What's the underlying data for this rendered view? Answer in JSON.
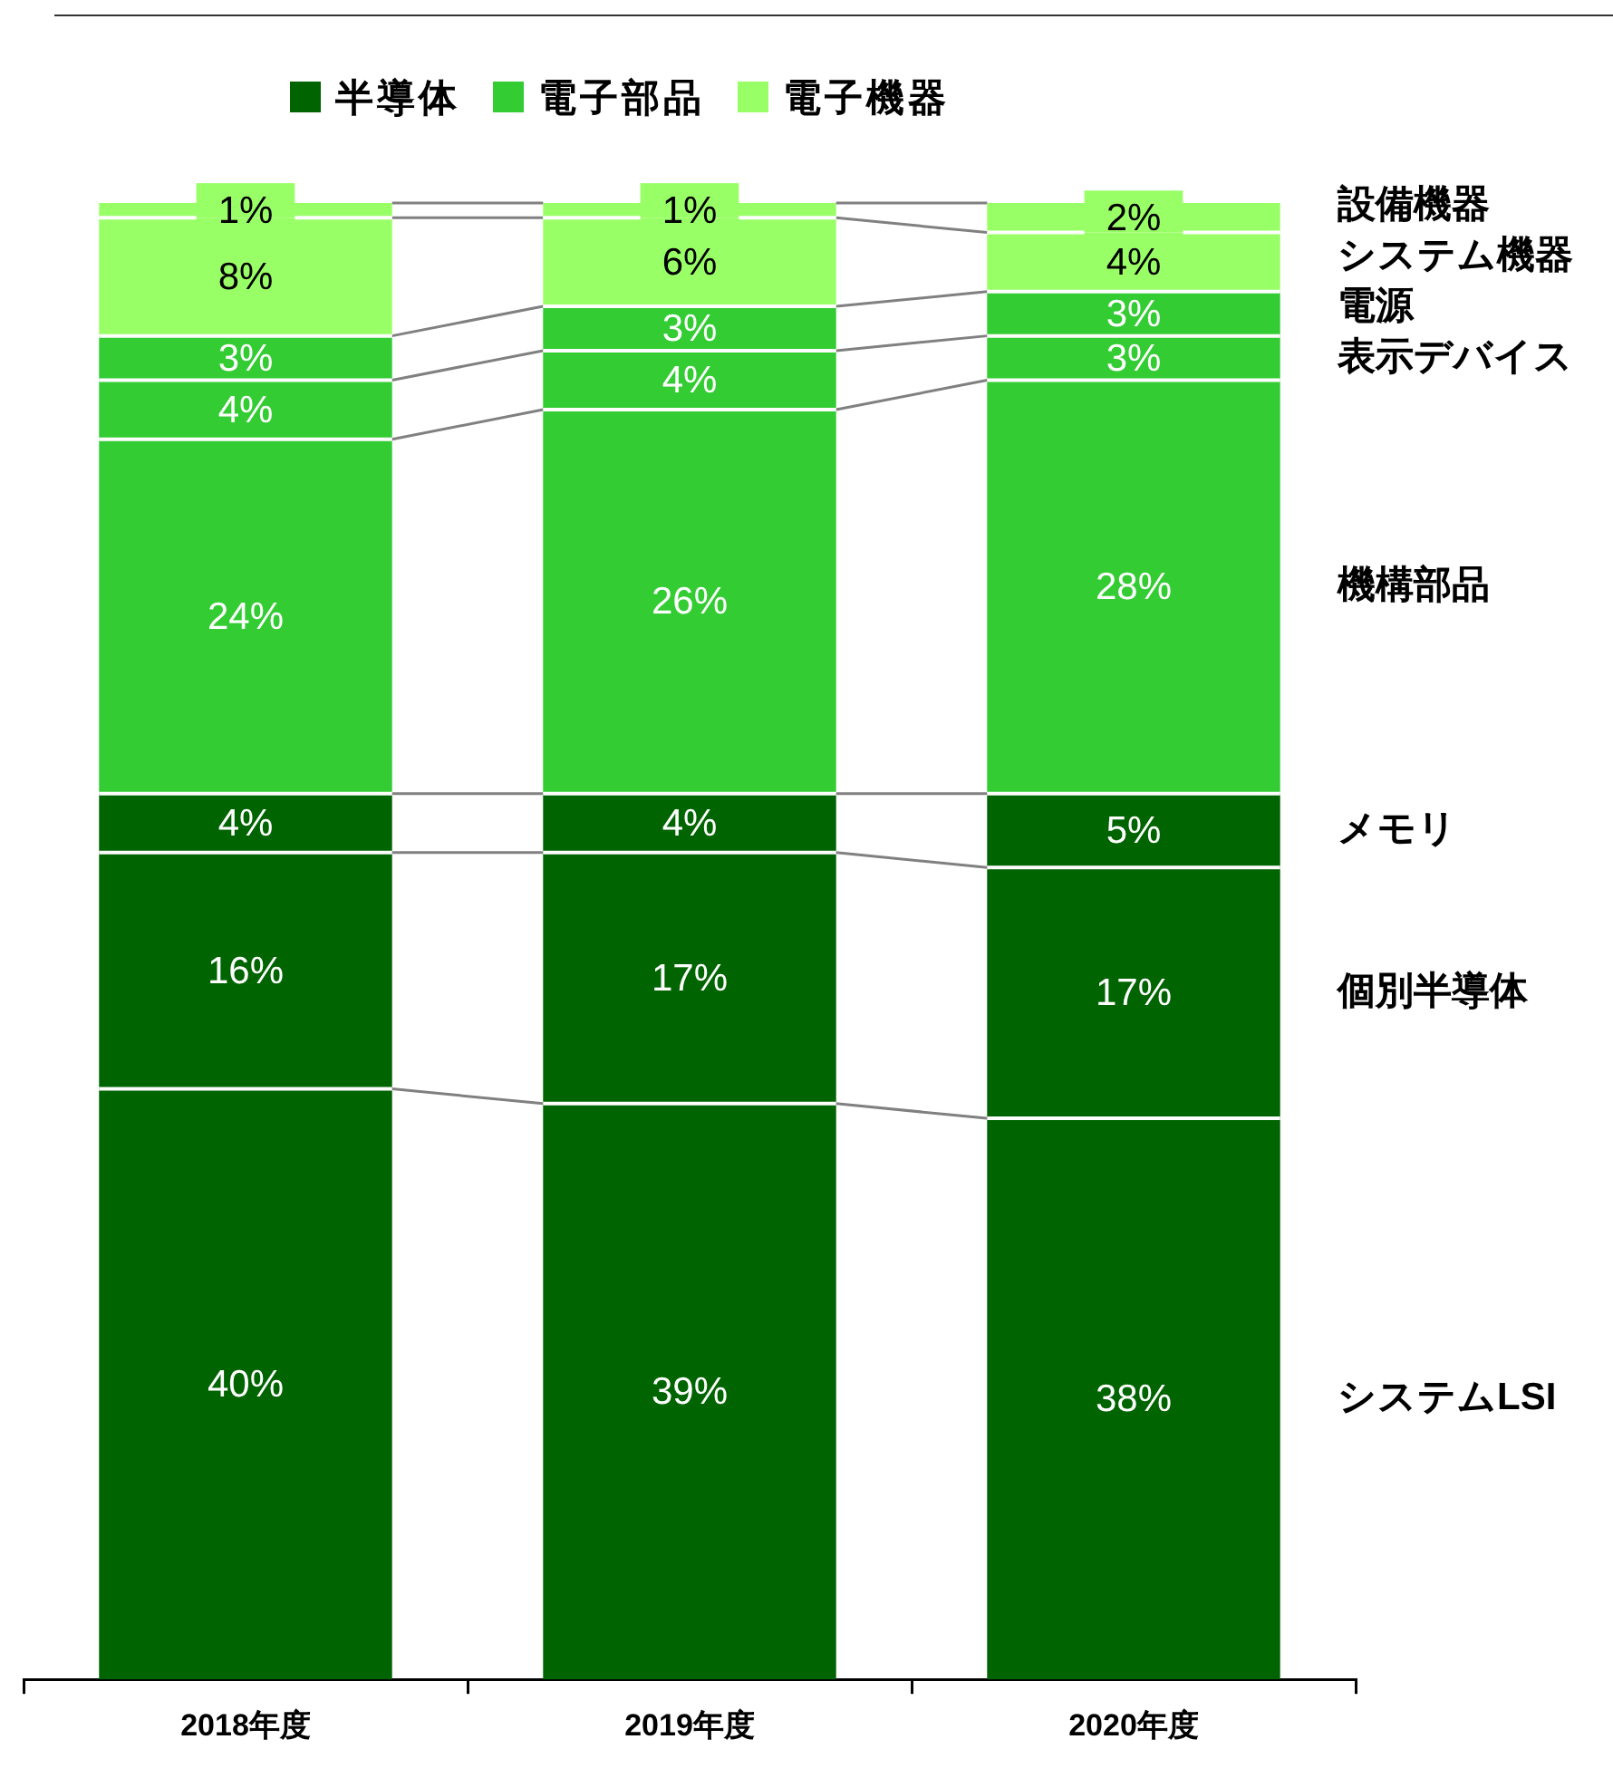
{
  "chart_data": {
    "type": "bar",
    "stacked": true,
    "legend": false,
    "grid": false,
    "categories": [
      "2018年度",
      "2019年度",
      "2020年度"
    ],
    "annotations": [
      "半導体",
      "電子部品",
      "電子機器"
    ],
    "series": [
      {
        "name": "システムLSI",
        "color": "#006400",
        "values": [
          40,
          39,
          38
        ],
        "value_labels": [
          "40%",
          "39%",
          "38%"
        ]
      },
      {
        "name": "個別半導体",
        "color": "#006400",
        "values": [
          16,
          17,
          17
        ],
        "value_labels": [
          "16%",
          "17%",
          "17%"
        ]
      },
      {
        "name": "メモリ",
        "color": "#006400",
        "values": [
          4,
          4,
          5
        ],
        "value_labels": [
          "4%",
          "4%",
          "5%"
        ]
      },
      {
        "name": "機構部品",
        "color": "#33cc33",
        "values": [
          24,
          26,
          28
        ],
        "value_labels": [
          "24%",
          "26%",
          "28%"
        ]
      },
      {
        "name": "表示デバイス",
        "color": "#33cc33",
        "values": [
          4,
          4,
          3
        ],
        "value_labels": [
          "4%",
          "4%",
          "3%"
        ]
      },
      {
        "name": "電源",
        "color": "#33cc33",
        "values": [
          3,
          3,
          3
        ],
        "value_labels": [
          "3%",
          "3%",
          "3%"
        ]
      },
      {
        "name": "システム機器",
        "color": "#99ff66",
        "values": [
          8,
          6,
          4
        ],
        "value_labels": [
          "8%",
          "6%",
          "4%"
        ]
      },
      {
        "name": "設備機器",
        "color": "#99ff66",
        "values": [
          1,
          1,
          2
        ],
        "value_labels": [
          "1%",
          "1%",
          "2%"
        ]
      }
    ]
  }
}
